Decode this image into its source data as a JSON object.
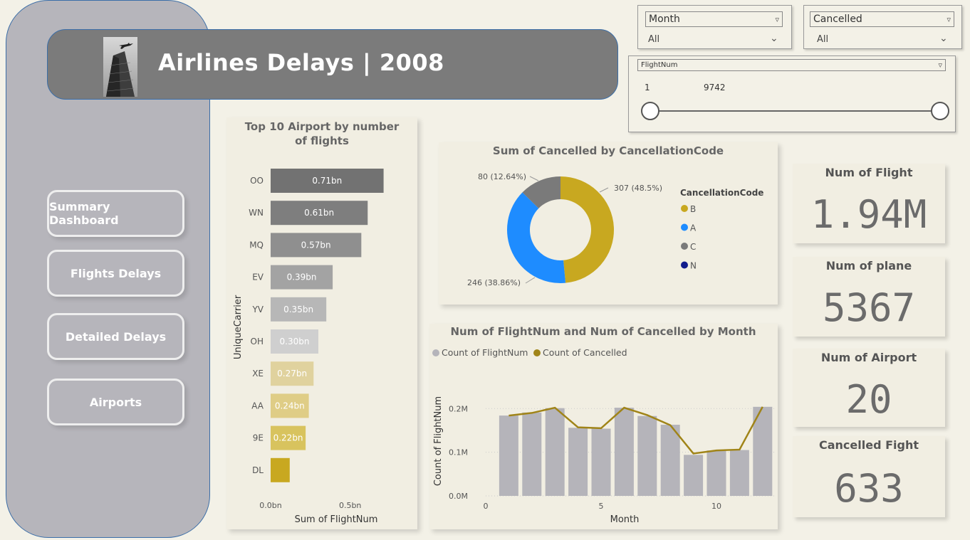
{
  "header": {
    "title": "Airlines Delays | 2008",
    "image_icon": "airplane-building-photo"
  },
  "nav": {
    "summary": "Summary Dashboard",
    "flights": "Flights Delays",
    "detailed": "Detailed Delays",
    "airports": "Airports"
  },
  "slicers": {
    "month": {
      "label": "Month",
      "value": "All"
    },
    "cancelled": {
      "label": "Cancelled",
      "value": "All"
    },
    "flightnum": {
      "label": "FlightNum",
      "min": "1",
      "max": "9742"
    }
  },
  "kpis": {
    "flights": {
      "label": "Num of Flight",
      "value": "1.94M"
    },
    "planes": {
      "label": "Num of plane",
      "value": "5367"
    },
    "airports": {
      "label": "Num of Airport",
      "value": "20"
    },
    "cancelled": {
      "label": "Cancelled Fight",
      "value": "633"
    }
  },
  "colors": {
    "accent_gold": "#c8a820",
    "blue": "#1e8cff",
    "gray": "#7a7a7a",
    "navy": "#111c8c",
    "line_gold": "#a08418"
  },
  "chart_data": [
    {
      "type": "bar",
      "orientation": "horizontal",
      "title": "Top 10 Airport by number of flights",
      "ylabel": "UniqueCarrier",
      "xlabel": "Sum of FlightNum",
      "categories": [
        "OO",
        "WN",
        "MQ",
        "EV",
        "YV",
        "OH",
        "XE",
        "AA",
        "9E",
        "DL"
      ],
      "values": [
        0.71,
        0.61,
        0.57,
        0.39,
        0.35,
        0.3,
        0.27,
        0.24,
        0.22,
        0.12
      ],
      "data_labels": [
        "0.71bn",
        "0.61bn",
        "0.57bn",
        "0.39bn",
        "0.35bn",
        "0.30bn",
        "0.27bn",
        "0.24bn",
        "0.22bn",
        ""
      ],
      "xticks": [
        "0.0bn",
        "0.5bn"
      ],
      "xlim": [
        0,
        0.77
      ]
    },
    {
      "type": "pie",
      "variant": "donut",
      "title": "Sum of Cancelled by CancellationCode",
      "legend_title": "CancellationCode",
      "legend_position": "right",
      "slices": [
        {
          "name": "B",
          "value": 307,
          "label": "307 (48.5%)",
          "color": "#c8a820"
        },
        {
          "name": "A",
          "value": 246,
          "label": "246 (38.86%)",
          "color": "#1e8cff"
        },
        {
          "name": "C",
          "value": 80,
          "label": "80 (12.64%)",
          "color": "#7a7a7a"
        },
        {
          "name": "N",
          "value": 0,
          "label": "",
          "color": "#111c8c"
        }
      ]
    },
    {
      "type": "bar",
      "combo": "bar+line",
      "title": "Num of FlightNum and Num of Cancelled by Month",
      "xlabel": "Month",
      "ylabel": "Count of FlightNum",
      "legend_position": "top-left",
      "x": [
        1,
        2,
        3,
        4,
        5,
        6,
        7,
        8,
        9,
        10,
        11,
        12
      ],
      "xticks": [
        "0",
        "5",
        "10"
      ],
      "yticks": [
        "0.0M",
        "0.1M",
        "0.2M"
      ],
      "ylim": [
        0,
        0.22
      ],
      "xlim": [
        0,
        12.5
      ],
      "series": [
        {
          "name": "Count of FlightNum",
          "kind": "bar",
          "color": "#b5b4ba",
          "values": [
            0.184,
            0.191,
            0.201,
            0.156,
            0.154,
            0.202,
            0.183,
            0.163,
            0.094,
            0.104,
            0.105,
            0.204
          ]
        },
        {
          "name": "Count of Cancelled",
          "kind": "line",
          "color": "#a08418",
          "values": [
            0.184,
            0.19,
            0.202,
            0.157,
            0.155,
            0.202,
            0.185,
            0.162,
            0.097,
            0.104,
            0.106,
            0.204
          ]
        }
      ]
    }
  ]
}
